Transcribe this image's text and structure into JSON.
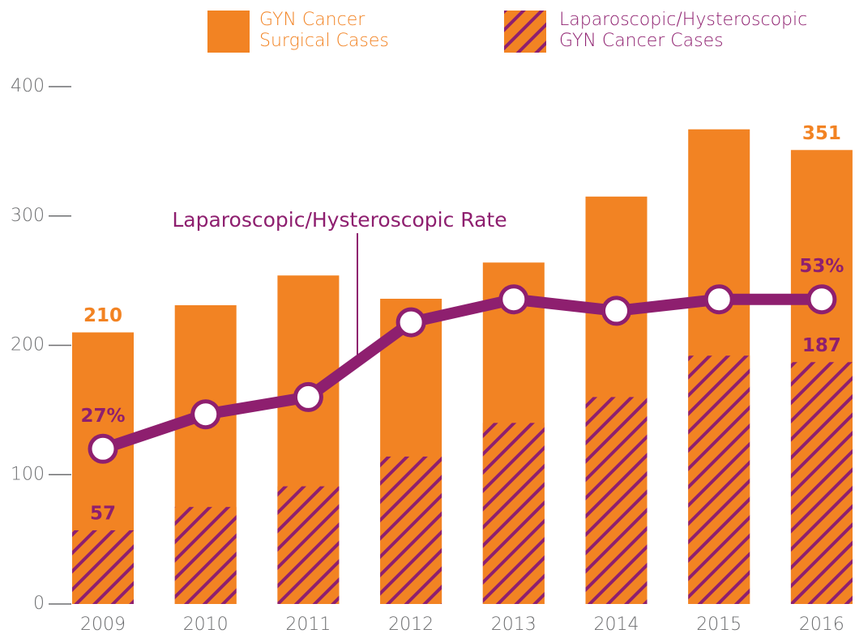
{
  "chart_data": {
    "type": "bar",
    "annotation": "Laparoscopic/Hysteroscopic Rate",
    "categories": [
      "2009",
      "2010",
      "2011",
      "2012",
      "2013",
      "2014",
      "2015",
      "2016"
    ],
    "series": [
      {
        "name": "GYN Cancer Surgical Cases",
        "color": "#f28323",
        "values": [
          210,
          231,
          254,
          236,
          264,
          315,
          367,
          351
        ],
        "value_labels": [
          "210",
          null,
          null,
          null,
          null,
          null,
          null,
          "351"
        ]
      },
      {
        "name": "Laparoscopic/Hysteroscopic GYN Cancer Cases",
        "color": "#8e1f6f",
        "pattern": "hatch",
        "values": [
          57,
          75,
          91,
          114,
          140,
          160,
          192,
          187
        ],
        "value_labels": [
          "57",
          null,
          null,
          null,
          null,
          null,
          null,
          "187"
        ]
      },
      {
        "name": "Laparoscopic/Hysteroscopic Rate",
        "type": "line",
        "axis": "y2",
        "color": "#8e1f6f",
        "values": [
          27,
          33,
          36,
          49,
          53,
          51,
          53,
          53
        ],
        "value_labels": [
          "27%",
          null,
          null,
          null,
          null,
          null,
          null,
          "53%"
        ]
      }
    ],
    "ylim": [
      0,
      400
    ],
    "yticks": [
      0,
      100,
      200,
      300,
      400
    ],
    "y2lim": [
      0,
      90
    ],
    "grid": false
  }
}
